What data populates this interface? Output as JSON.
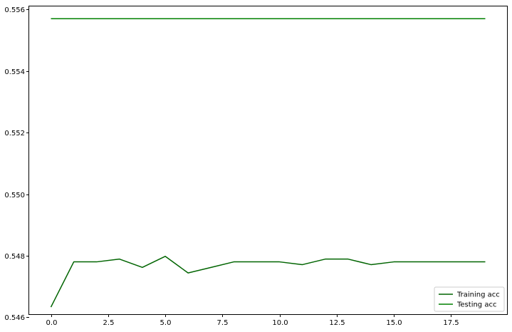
{
  "chart_data": {
    "type": "line",
    "title": "",
    "xlabel": "",
    "ylabel": "",
    "xlim": [
      -0.95,
      19.95
    ],
    "ylim": [
      0.5461,
      0.5561
    ],
    "grid": false,
    "legend_position": "lower-right",
    "x": [
      0,
      1,
      2,
      3,
      4,
      5,
      6,
      7,
      8,
      9,
      10,
      11,
      12,
      13,
      14,
      15,
      16,
      17,
      18,
      19
    ],
    "x_ticks": [
      0.0,
      2.5,
      5.0,
      7.5,
      10.0,
      12.5,
      15.0,
      17.5
    ],
    "x_tick_labels": [
      "0.0",
      "2.5",
      "5.0",
      "7.5",
      "10.0",
      "12.5",
      "15.0",
      "17.5"
    ],
    "y_ticks": [
      0.546,
      0.548,
      0.55,
      0.552,
      0.554,
      0.556
    ],
    "y_tick_labels": [
      "0.546",
      "0.548",
      "0.550",
      "0.552",
      "0.554",
      "0.556"
    ],
    "series": [
      {
        "name": "Training acc",
        "color": "#006400",
        "values": [
          0.54633,
          0.5478,
          0.5478,
          0.54789,
          0.54762,
          0.54798,
          0.54744,
          0.54762,
          0.5478,
          0.5478,
          0.5478,
          0.54771,
          0.54789,
          0.54789,
          0.54771,
          0.5478,
          0.5478,
          0.5478,
          0.5478,
          0.5478
        ]
      },
      {
        "name": "Testing acc",
        "color": "#008000",
        "values": [
          0.5557,
          0.5557,
          0.5557,
          0.5557,
          0.5557,
          0.5557,
          0.5557,
          0.5557,
          0.5557,
          0.5557,
          0.5557,
          0.5557,
          0.5557,
          0.5557,
          0.5557,
          0.5557,
          0.5557,
          0.5557,
          0.5557,
          0.5557
        ]
      }
    ]
  }
}
